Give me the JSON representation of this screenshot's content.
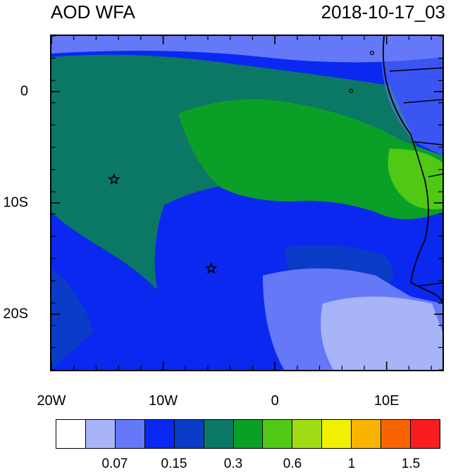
{
  "header": {
    "title_left": "AOD WFA",
    "title_right": "2018-10-17_03"
  },
  "map": {
    "lon_range": [
      -20,
      15
    ],
    "lat_range": [
      -25,
      5
    ],
    "lon_ticks": [
      {
        "value": -20,
        "label": "20W"
      },
      {
        "value": -10,
        "label": "10W"
      },
      {
        "value": 0,
        "label": "0"
      },
      {
        "value": 10,
        "label": "10E"
      }
    ],
    "lat_ticks": [
      {
        "value": 0,
        "label": "0"
      },
      {
        "value": -10,
        "label": "10S"
      },
      {
        "value": -20,
        "label": "20S"
      }
    ],
    "stations": [
      {
        "name": "station-ascension",
        "lon": -14.4,
        "lat": -7.9
      },
      {
        "name": "station-st-helena",
        "lon": -5.7,
        "lat": -15.9
      }
    ]
  },
  "colorbar": {
    "colors": [
      "#ffffff",
      "#a8b4f8",
      "#6478f8",
      "#0a28f0",
      "#0a3cc8",
      "#0a7864",
      "#0aa028",
      "#50c814",
      "#a0dc14",
      "#f0f000",
      "#f8b400",
      "#f86400",
      "#f81e1e"
    ],
    "labels": [
      {
        "after_box": 2,
        "text": "0.07"
      },
      {
        "after_box": 4,
        "text": "0.15"
      },
      {
        "after_box": 6,
        "text": "0.3"
      },
      {
        "after_box": 8,
        "text": "0.6"
      },
      {
        "after_box": 10,
        "text": "1"
      },
      {
        "after_box": 12,
        "text": "1.5"
      }
    ]
  }
}
